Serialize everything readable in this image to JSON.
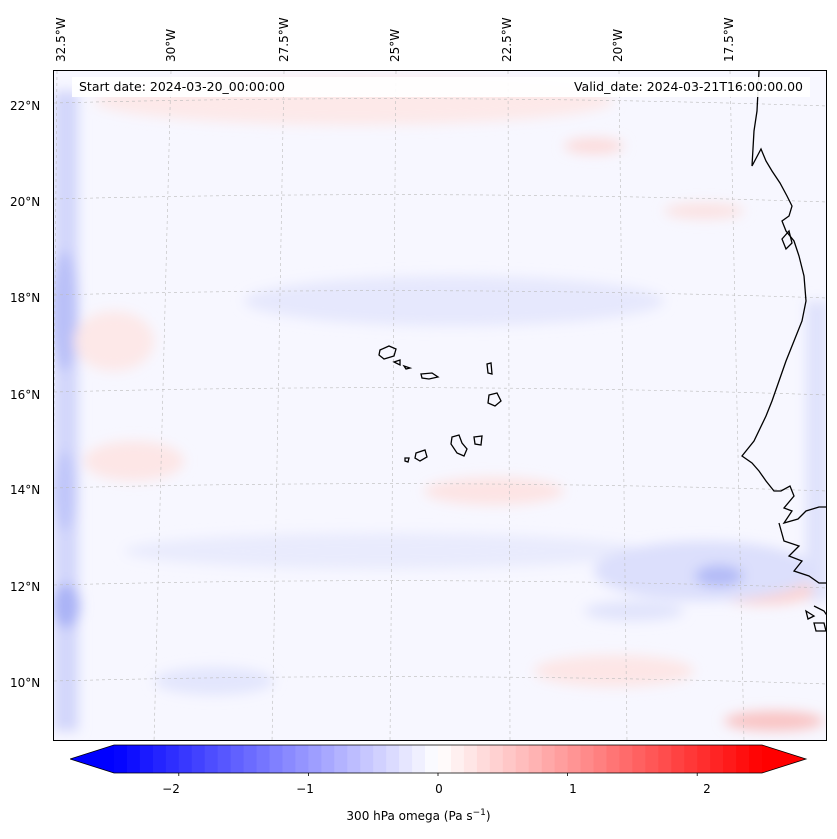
{
  "map": {
    "start_date": "Start date: 2024-03-20_00:00:00",
    "valid_date": "Valid_date: 2024-03-21T16:00:00.00",
    "longitude_labels": [
      "32.5°W",
      "30°W",
      "27.5°W",
      "25°W",
      "22.5°W",
      "20°W",
      "17.5°W"
    ],
    "latitude_labels": [
      "22°N",
      "20°N",
      "18°N",
      "16°N",
      "14°N",
      "12°N",
      "10°N"
    ],
    "coastline_color": "#000000",
    "gridline_color": "#bbbbbb"
  },
  "colorbar": {
    "title": "300 hPa omega (Pa s",
    "title_exponent": "−1",
    "title_close": ")",
    "ticks": [
      "−2",
      "−1",
      "0",
      "1",
      "2"
    ],
    "tick_values": [
      -2,
      -1,
      0,
      1,
      2
    ],
    "range": [
      -2.5,
      2.5
    ],
    "negative_color": "#0000ff",
    "zero_color": "#ffffff",
    "positive_color": "#ff0000"
  }
}
